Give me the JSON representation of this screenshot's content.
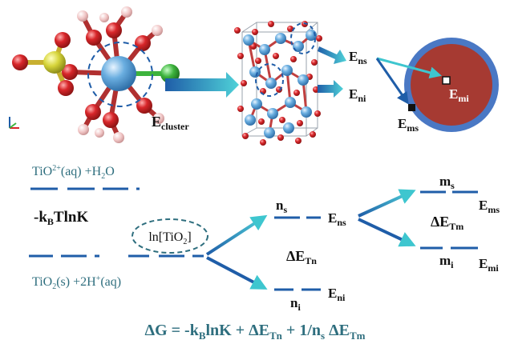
{
  "labels": {
    "e_cluster": "E",
    "e_cluster_sub": "cluster",
    "e_ns": "E",
    "e_ns_sub": "ns",
    "e_ni": "E",
    "e_ni_sub": "ni",
    "e_mi": "E",
    "e_mi_sub": "mi",
    "e_ms": "E",
    "e_ms_sub": "ms"
  },
  "energy_diagram": {
    "reaction_top_a": "TiO",
    "reaction_top_sup": "2+",
    "reaction_top_b": "(aq) +H",
    "reaction_top_sub": "2",
    "reaction_top_c": "O",
    "kbtlnk_a": "-k",
    "kbtlnk_sub": "B",
    "kbtlnk_b": "TlnK",
    "reaction_bottom_a": "TiO",
    "reaction_bottom_sub": "2",
    "reaction_bottom_b": "(s) +2H",
    "reaction_bottom_sup": "+",
    "reaction_bottom_c": "(aq)",
    "ln_tio2_a": "ln[TiO",
    "ln_tio2_sub": "2",
    "ln_tio2_b": "]",
    "ns_label": "n",
    "ns_sub": "s",
    "ni_label": "n",
    "ni_sub": "i",
    "ens_label": "E",
    "ens_sub": "ns",
    "eni_label": "E",
    "eni_sub": "ni",
    "dE_tn": "ΔE",
    "dE_tn_sub": "Tn",
    "ms_label": "m",
    "ms_sub": "s",
    "mi_label": "m",
    "mi_sub": "i",
    "ems_label": "E",
    "ems_sub": "ms",
    "emi_label": "E",
    "emi_sub": "mi",
    "dE_tm": "ΔE",
    "dE_tm_sub": "Tm"
  },
  "equation": {
    "p1": "ΔG = -k",
    "p1_sub": "B",
    "p2": "lnK + ΔE",
    "p2_sub": "Tn",
    "p3": " + 1/n",
    "p3_sub": "s",
    "p4": " ΔE",
    "p4_sub": "Tm"
  },
  "colors": {
    "dark_blue": "#1f5da8",
    "teal_text": "#2e6e7e",
    "arrow_teal": "#3ec6cf",
    "sphere_red": "#a63a32",
    "ti_blue": "#6aaee0",
    "o_red": "#d8262a",
    "h_pink": "#f0c4c4",
    "s_yellow": "#d6d43a",
    "cl_green": "#3db33d"
  }
}
